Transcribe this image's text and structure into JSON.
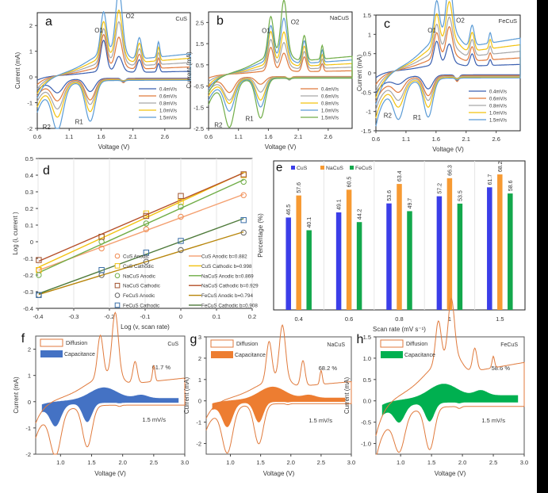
{
  "figure": {
    "panels": [
      "a",
      "b",
      "c",
      "d",
      "e",
      "f",
      "g",
      "h"
    ]
  },
  "chart_data": [
    {
      "id": "a",
      "type": "line",
      "panel_label": "a",
      "material": "CuS",
      "xlabel": "Voltage (V)",
      "ylabel": "Current (mA)",
      "xlim": [
        0.6,
        3.0
      ],
      "ylim": [
        -2,
        2.5
      ],
      "xticks": [
        "0.6",
        "1.1",
        "1.6",
        "2.1",
        "2.6"
      ],
      "yticks": [
        "-2",
        "-1",
        "0",
        "1",
        "2"
      ],
      "annotations": [
        "O1",
        "O2",
        "R1",
        "R2"
      ],
      "legend": [
        "0.4mV/s",
        "0.6mV/s",
        "0.8mV/s",
        "1.0mV/s",
        "1.5mV/s"
      ],
      "legend_position": "bottom-right",
      "series_colors": [
        "#3a5fb0",
        "#e07a3c",
        "#a6a6a6",
        "#f2c20f",
        "#5b9bd5"
      ],
      "peaks": {
        "O1_V": 1.64,
        "O2_V": 1.88,
        "R1_V": 1.43,
        "R2_V": 0.92,
        "O1_mA": [
          1.2,
          1.25,
          1.3,
          1.4,
          1.6
        ],
        "O2_mA": [
          0.55,
          1.1,
          1.5,
          1.75,
          2.35
        ],
        "R1_mA": [
          -0.65,
          -0.95,
          -1.1,
          -1.35,
          -1.7
        ],
        "R2_mA": [
          -0.7,
          -0.95,
          -1.2,
          -1.45,
          -1.9
        ]
      }
    },
    {
      "id": "b",
      "type": "line",
      "panel_label": "b",
      "material": "NaCuS",
      "xlabel": "Voltage (V)",
      "ylabel": "Current (mA)",
      "xlim": [
        0.6,
        3.0
      ],
      "ylim": [
        -2.5,
        3
      ],
      "xticks": [
        "0.6",
        "1.1",
        "1.6",
        "2.1",
        "2.6"
      ],
      "yticks": [
        "-2.5",
        "-1.5",
        "-0.5",
        "0.5",
        "1.5",
        "2.5"
      ],
      "annotations": [
        "O1",
        "O2",
        "R1",
        "R2"
      ],
      "legend": [
        "0.4mV/s",
        "0.6mV/s",
        "0.8mV/s",
        "1.0mV/s",
        "1.5mV/s"
      ],
      "legend_position": "bottom-right",
      "series_colors": [
        "#e07a3c",
        "#a6a6a6",
        "#f2c20f",
        "#5b9bd5",
        "#70ad47"
      ],
      "peaks": {
        "O1_V": 1.64,
        "O2_V": 1.86,
        "R1_V": 1.47,
        "R2_V": 0.95,
        "O1_mA": [
          1.1,
          1.3,
          1.5,
          1.6,
          1.85
        ],
        "O2_mA": [
          0.8,
          1.1,
          1.4,
          1.85,
          2.5
        ],
        "R1_mA": [
          -0.5,
          -0.85,
          -1.2,
          -1.5,
          -2.0
        ],
        "R2_mA": [
          -0.9,
          -1.2,
          -1.3,
          -1.6,
          -2.3
        ]
      }
    },
    {
      "id": "c",
      "type": "line",
      "panel_label": "c",
      "material": "FeCuS",
      "xlabel": "Voltage (V)",
      "ylabel": "Current (mA)",
      "xlim": [
        0.6,
        3.0
      ],
      "ylim": [
        -1.5,
        1.5
      ],
      "xticks": [
        "0.6",
        "1.1",
        "1.6",
        "2.1",
        "2.6"
      ],
      "yticks": [
        "-1.5",
        "-1",
        "-0.5",
        "0",
        "0.5",
        "1",
        "1.5"
      ],
      "annotations": [
        "O1",
        "O2",
        "R1",
        "R2"
      ],
      "legend": [
        "0.4mV/s",
        "0.6mV/s",
        "0.8mV/s",
        "1.0mV/s",
        "1.5mV/s"
      ],
      "legend_position": "bottom-right",
      "series_colors": [
        "#3a5fb0",
        "#e07a3c",
        "#a6a6a6",
        "#f2c20f",
        "#5b9bd5"
      ],
      "peaks": {
        "O1_V": 1.61,
        "O2_V": 1.82,
        "R1_V": 1.47,
        "R2_V": 0.98,
        "O1_mA": [
          0.6,
          0.65,
          0.7,
          0.8,
          0.97
        ],
        "O2_mA": [
          0.5,
          0.75,
          0.8,
          1.0,
          1.35
        ],
        "R1_mA": [
          -0.5,
          -0.65,
          -0.75,
          -0.9,
          -1.13
        ],
        "R2_mA": [
          -0.4,
          -0.55,
          -0.7,
          -0.82,
          -1.08
        ]
      }
    },
    {
      "id": "d",
      "type": "scatter",
      "panel_label": "d",
      "xlabel": "Log (v, scan rate)",
      "ylabel": "Log (i, current )",
      "xlim": [
        -0.4,
        0.2
      ],
      "ylim": [
        -0.4,
        0.5
      ],
      "xticks": [
        "-0.4",
        "-0.3",
        "-0.2",
        "-0.1",
        "0",
        "0.1",
        "0.2"
      ],
      "yticks": [
        "-0.4",
        "-0.3",
        "-0.2",
        "-0.1",
        "0",
        "0.1",
        "0.2",
        "0.3",
        "0.4",
        "0.5"
      ],
      "x": [
        -0.398,
        -0.222,
        -0.097,
        0.0,
        0.176
      ],
      "series": [
        {
          "name": "CuS Anodic",
          "marker": "circle",
          "color": "#f08a50",
          "values": [
            -0.17,
            -0.04,
            0.075,
            0.15,
            0.28
          ],
          "fit": "CuS Anodic b=0.882",
          "fit_color": "#f4a070",
          "b": 0.882
        },
        {
          "name": "CuS Cathodic",
          "marker": "square",
          "color": "#f2c20f",
          "values": [
            -0.17,
            0.03,
            0.17,
            0.24,
            0.4
          ],
          "fit": "CuS Cathodic b=0.998",
          "fit_color": "#f2c20f",
          "b": 0.998
        },
        {
          "name": "NaCuS Anodic",
          "marker": "circle",
          "color": "#70ad47",
          "values": [
            -0.2,
            0.0,
            0.11,
            0.21,
            0.36
          ],
          "fit": "NaCuS Anodic b=0.869",
          "fit_color": "#70ad47",
          "b": 0.869
        },
        {
          "name": "NaCuS Cathodic",
          "marker": "square",
          "color": "#a0522d",
          "values": [
            -0.11,
            0.03,
            0.155,
            0.275,
            0.405
          ],
          "fit": "NaCuS Cathodic b=0.929",
          "fit_color": "#b5502a",
          "b": 0.929
        },
        {
          "name": "FeCuS Anodic",
          "marker": "circle",
          "color": "#666666",
          "values": [
            -0.32,
            -0.2,
            -0.12,
            -0.05,
            0.055
          ],
          "fit": "FeCuS Anodic b=0.794",
          "fit_color": "#b8860b",
          "b": 0.794
        },
        {
          "name": "FeCuS Cathodic",
          "marker": "square",
          "color": "#3a6fa8",
          "values": [
            -0.32,
            -0.17,
            -0.065,
            0.005,
            0.13
          ],
          "fit": "FeCuS Cathodic b=0.908",
          "fit_color": "#4e7a3a",
          "b": 0.908
        }
      ],
      "legend_position": "bottom-right"
    },
    {
      "id": "e",
      "type": "bar",
      "panel_label": "e",
      "xlabel": "Scan rate (mV s⁻¹)",
      "ylabel": "Percentage (%)",
      "categories": [
        "0.4",
        "0.6",
        "0.8",
        "1",
        "1.5"
      ],
      "ylim": [
        0,
        75
      ],
      "series": [
        {
          "name": "CuS",
          "color": "#3b3ee8",
          "values": [
            46.5,
            49.1,
            53.6,
            57.2,
            61.7
          ]
        },
        {
          "name": "NaCuS",
          "color": "#f79a32",
          "values": [
            57.6,
            60.5,
            63.4,
            66.3,
            68.2
          ]
        },
        {
          "name": "FeCuS",
          "color": "#13a84c",
          "values": [
            40.1,
            44.2,
            49.7,
            53.5,
            58.6
          ]
        }
      ],
      "legend_position": "top-left",
      "grid": true
    },
    {
      "id": "f",
      "type": "area",
      "panel_label": "f",
      "material": "CuS",
      "xlabel": "Voltage (V)",
      "ylabel": "Current (mA)",
      "xlim": [
        0.6,
        3.0
      ],
      "ylim": [
        -2,
        2.5
      ],
      "xticks": [
        "1.0",
        "1.5",
        "2.0",
        "2.5",
        "3.0"
      ],
      "yticks": [
        "-2",
        "-1",
        "0",
        "1",
        "2"
      ],
      "legend": [
        "Diffusion",
        "Capacitance"
      ],
      "capacitance_percent": "61.7 %",
      "scan_rate": "1.5 mV/s",
      "fill_color": "#4472c4",
      "outline_color": "#e07a3c"
    },
    {
      "id": "g",
      "type": "area",
      "panel_label": "g",
      "material": "NaCuS",
      "xlabel": "Voltage (V)",
      "ylabel": "Current (mA)",
      "xlim": [
        0.6,
        3.0
      ],
      "ylim": [
        -2.5,
        3
      ],
      "xticks": [
        "1.0",
        "1.5",
        "2.0",
        "2.5",
        "3.0"
      ],
      "yticks": [
        "-2",
        "-1",
        "0",
        "1",
        "2",
        "3"
      ],
      "legend": [
        "Diffusion",
        "Capacitance"
      ],
      "capacitance_percent": "68.2 %",
      "scan_rate": "1.5 mV/s",
      "fill_color": "#ed7d31",
      "outline_color": "#e07a3c"
    },
    {
      "id": "h",
      "type": "area",
      "panel_label": "h",
      "material": "FeCuS",
      "xlabel": "Voltage (V)",
      "ylabel": "Current (mA)",
      "xlim": [
        0.6,
        3.0
      ],
      "ylim": [
        -1.25,
        1.5
      ],
      "xticks": [
        "1.0",
        "1.5",
        "2.0",
        "2.5",
        "3.0"
      ],
      "yticks": [
        "-1.0",
        "-0.5",
        "0.0",
        "0.5",
        "1.0",
        "1.5"
      ],
      "legend": [
        "Diffusion",
        "Capacitance"
      ],
      "capacitance_percent": "58.6 %",
      "scan_rate": "1.5 mV/s",
      "fill_color": "#00b050",
      "outline_color": "#e07a3c"
    }
  ]
}
